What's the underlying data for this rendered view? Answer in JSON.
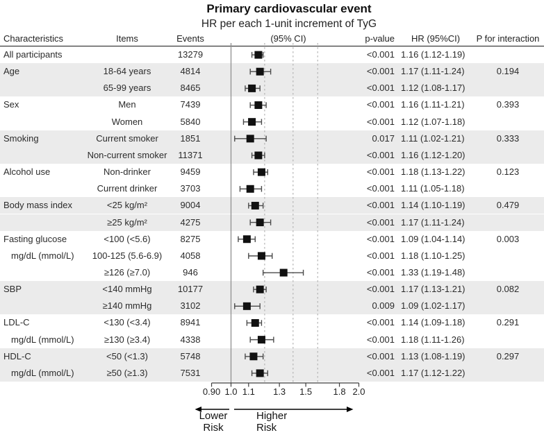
{
  "figure": {
    "title": "Primary cardiovascular event",
    "subtitle": "HR per each 1-unit increment of TyG"
  },
  "table": {
    "headers": {
      "characteristics": "Characteristics",
      "items": "Items",
      "events": "Events",
      "plot": "(95% CI)",
      "p_value": "p-value",
      "hr_ci": "HR (95%CI)",
      "p_interaction": "P for interaction"
    }
  },
  "chart_data": {
    "type": "forest",
    "title": "Primary cardiovascular event",
    "subtitle": "HR per each 1-unit increment of TyG (95% CI)",
    "x_scale": "log",
    "x_range": [
      0.9,
      2.0
    ],
    "x_ticks": [
      {
        "value": 0.9,
        "label": "0.90"
      },
      {
        "value": 1.0,
        "label": "1.0"
      },
      {
        "value": 1.1,
        "label": "1.1"
      },
      {
        "value": 1.3,
        "label": "1.3"
      },
      {
        "value": 1.5,
        "label": "1.5"
      },
      {
        "value": 1.8,
        "label": "1.8"
      },
      {
        "value": 2.0,
        "label": "2.0"
      }
    ],
    "reference_line_solid": 1.0,
    "reference_lines_dotted": [
      1.2,
      1.4,
      1.6
    ],
    "arrows": {
      "lower_label": "Lower\nRisk",
      "higher_label": "Higher\nRisk"
    },
    "colors": {
      "band": "#ebebeb",
      "marker": "#111111",
      "whisker": "#4a4a4a",
      "axis": "#3c3c3c",
      "ref_solid": "#8f8f8f",
      "ref_dotted": "#b4b4b4"
    },
    "rows": [
      {
        "characteristic": "All participants",
        "indent": false,
        "item": "",
        "events": "13279",
        "p_value": "<0.001",
        "hr": 1.16,
        "ci_low": 1.12,
        "ci_high": 1.19,
        "hr_ci": "1.16 (1.12-1.19)",
        "p_interaction": "",
        "shaded": false
      },
      {
        "characteristic": "Age",
        "indent": false,
        "item": "18-64 years",
        "events": "4814",
        "p_value": "<0.001",
        "hr": 1.17,
        "ci_low": 1.11,
        "ci_high": 1.24,
        "hr_ci": "1.17 (1.11-1.24)",
        "p_interaction": "0.194",
        "shaded": true
      },
      {
        "characteristic": "",
        "indent": false,
        "item": "65-99 years",
        "events": "8465",
        "p_value": "<0.001",
        "hr": 1.12,
        "ci_low": 1.08,
        "ci_high": 1.17,
        "hr_ci": "1.12 (1.08-1.17)",
        "p_interaction": "",
        "shaded": true
      },
      {
        "characteristic": "Sex",
        "indent": false,
        "item": "Men",
        "events": "7439",
        "p_value": "<0.001",
        "hr": 1.16,
        "ci_low": 1.11,
        "ci_high": 1.21,
        "hr_ci": "1.16 (1.11-1.21)",
        "p_interaction": "0.393",
        "shaded": false
      },
      {
        "characteristic": "",
        "indent": false,
        "item": "Women",
        "events": "5840",
        "p_value": "<0.001",
        "hr": 1.12,
        "ci_low": 1.07,
        "ci_high": 1.18,
        "hr_ci": "1.12 (1.07-1.18)",
        "p_interaction": "",
        "shaded": false
      },
      {
        "characteristic": "Smoking",
        "indent": false,
        "item": "Current smoker",
        "events": "1851",
        "p_value": "0.017",
        "hr": 1.11,
        "ci_low": 1.02,
        "ci_high": 1.21,
        "hr_ci": "1.11 (1.02-1.21)",
        "p_interaction": "0.333",
        "shaded": true
      },
      {
        "characteristic": "",
        "indent": false,
        "item": "Non-current smoker",
        "events": "11371",
        "p_value": "<0.001",
        "hr": 1.16,
        "ci_low": 1.12,
        "ci_high": 1.2,
        "hr_ci": "1.16 (1.12-1.20)",
        "p_interaction": "",
        "shaded": true
      },
      {
        "characteristic": "Alcohol use",
        "indent": false,
        "item": "Non-drinker",
        "events": "9459",
        "p_value": "<0.001",
        "hr": 1.18,
        "ci_low": 1.13,
        "ci_high": 1.22,
        "hr_ci": "1.18 (1.13-1.22)",
        "p_interaction": "0.123",
        "shaded": false
      },
      {
        "characteristic": "",
        "indent": false,
        "item": "Current drinker",
        "events": "3703",
        "p_value": "<0.001",
        "hr": 1.11,
        "ci_low": 1.05,
        "ci_high": 1.18,
        "hr_ci": "1.11 (1.05-1.18)",
        "p_interaction": "",
        "shaded": false
      },
      {
        "characteristic": "Body mass index",
        "indent": false,
        "item": "<25 kg/m²",
        "events": "9004",
        "p_value": "<0.001",
        "hr": 1.14,
        "ci_low": 1.1,
        "ci_high": 1.19,
        "hr_ci": "1.14 (1.10-1.19)",
        "p_interaction": "0.479",
        "shaded": true
      },
      {
        "characteristic": "",
        "indent": false,
        "item": "≥25 kg/m²",
        "events": "4275",
        "p_value": "<0.001",
        "hr": 1.17,
        "ci_low": 1.11,
        "ci_high": 1.24,
        "hr_ci": "1.17 (1.11-1.24)",
        "p_interaction": "",
        "shaded": true
      },
      {
        "characteristic": "Fasting glucose",
        "indent": false,
        "item": "<100 (<5.6)",
        "events": "8275",
        "p_value": "<0.001",
        "hr": 1.09,
        "ci_low": 1.04,
        "ci_high": 1.14,
        "hr_ci": "1.09 (1.04-1.14)",
        "p_interaction": "0.003",
        "shaded": false
      },
      {
        "characteristic": "mg/dL (mmol/L)",
        "indent": true,
        "item": "100-125 (5.6-6.9)",
        "events": "4058",
        "p_value": "<0.001",
        "hr": 1.18,
        "ci_low": 1.1,
        "ci_high": 1.25,
        "hr_ci": "1.18 (1.10-1.25)",
        "p_interaction": "",
        "shaded": false
      },
      {
        "characteristic": "",
        "indent": false,
        "item": "≥126 (≥7.0)",
        "events": "946",
        "p_value": "<0.001",
        "hr": 1.33,
        "ci_low": 1.19,
        "ci_high": 1.48,
        "hr_ci": "1.33 (1.19-1.48)",
        "p_interaction": "",
        "shaded": false
      },
      {
        "characteristic": "SBP",
        "indent": false,
        "item": "<140 mmHg",
        "events": "10177",
        "p_value": "<0.001",
        "hr": 1.17,
        "ci_low": 1.13,
        "ci_high": 1.21,
        "hr_ci": "1.17 (1.13-1.21)",
        "p_interaction": "0.082",
        "shaded": true
      },
      {
        "characteristic": "",
        "indent": false,
        "item": "≥140 mmHg",
        "events": "3102",
        "p_value": "0.009",
        "hr": 1.09,
        "ci_low": 1.02,
        "ci_high": 1.17,
        "hr_ci": "1.09 (1.02-1.17)",
        "p_interaction": "",
        "shaded": true
      },
      {
        "characteristic": "LDL-C",
        "indent": false,
        "item": "<130 (<3.4)",
        "events": "8941",
        "p_value": "<0.001",
        "hr": 1.14,
        "ci_low": 1.09,
        "ci_high": 1.18,
        "hr_ci": "1.14 (1.09-1.18)",
        "p_interaction": "0.291",
        "shaded": false
      },
      {
        "characteristic": "mg/dL (mmol/L)",
        "indent": true,
        "item": "≥130 (≥3.4)",
        "events": "4338",
        "p_value": "<0.001",
        "hr": 1.18,
        "ci_low": 1.11,
        "ci_high": 1.26,
        "hr_ci": "1.18 (1.11-1.26)",
        "p_interaction": "",
        "shaded": false
      },
      {
        "characteristic": "HDL-C",
        "indent": false,
        "item": "<50 (<1.3)",
        "events": "5748",
        "p_value": "<0.001",
        "hr": 1.13,
        "ci_low": 1.08,
        "ci_high": 1.19,
        "hr_ci": "1.13 (1.08-1.19)",
        "p_interaction": "0.297",
        "shaded": true
      },
      {
        "characteristic": "mg/dL (mmol/L)",
        "indent": true,
        "item": "≥50 (≥1.3)",
        "events": "7531",
        "p_value": "<0.001",
        "hr": 1.17,
        "ci_low": 1.12,
        "ci_high": 1.22,
        "hr_ci": "1.17 (1.12-1.22)",
        "p_interaction": "",
        "shaded": true
      }
    ]
  }
}
